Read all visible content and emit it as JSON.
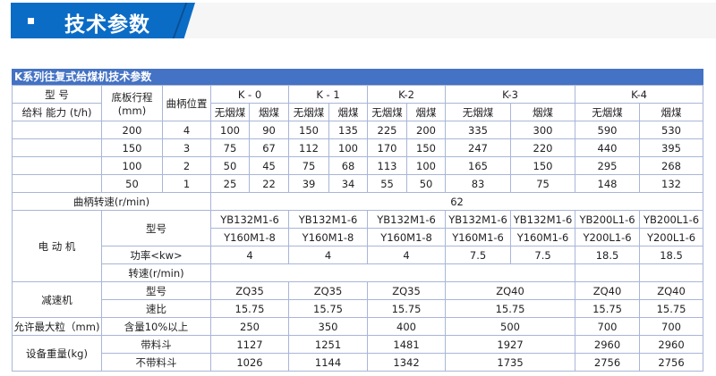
{
  "banner": {
    "title": "技术参数",
    "bullet_icon": "square-bullet-icon"
  },
  "table": {
    "caption": "K系列往复式给煤机技术参数",
    "header": {
      "model_label": "型 号",
      "capacity_label": "给料 能力 (t/h)",
      "stroke_label_1": "底板行程",
      "stroke_label_2": "(mm)",
      "crank_label": "曲柄位置",
      "models": [
        "K - 0",
        "K - 1",
        "K-2",
        "K-3",
        "K-4"
      ],
      "coal_types": [
        "无烟煤",
        "烟煤"
      ]
    },
    "capacity_rows": [
      {
        "stroke": "200",
        "position": "4",
        "values": [
          "100",
          "90",
          "150",
          "135",
          "225",
          "200",
          "335",
          "300",
          "590",
          "530"
        ]
      },
      {
        "stroke": "150",
        "position": "3",
        "values": [
          "75",
          "67",
          "112",
          "100",
          "170",
          "150",
          "247",
          "220",
          "440",
          "395"
        ]
      },
      {
        "stroke": "100",
        "position": "2",
        "values": [
          "50",
          "45",
          "75",
          "68",
          "113",
          "100",
          "165",
          "150",
          "295",
          "268"
        ]
      },
      {
        "stroke": "50",
        "position": "1",
        "values": [
          "25",
          "22",
          "39",
          "34",
          "55",
          "50",
          "83",
          "75",
          "148",
          "132"
        ]
      }
    ],
    "crank_speed": {
      "label": "曲柄转速(r/min)",
      "value": "62"
    },
    "motor": {
      "label": "电 动 机",
      "model_label": "型号",
      "models_1": [
        "YB132M1-6",
        "YB132M1-6",
        "YB132M1-6",
        "YB132M1-6",
        "YB132M1-6",
        "YB200L1-6",
        "YB200L1-6"
      ],
      "models_2": [
        "Y160M1-8",
        "Y160M1-8",
        "Y160M1-8",
        "Y160M1-6",
        "Y160M1-6",
        "Y200L1-6",
        "Y200L1-6"
      ],
      "power_label": "功率<kw>",
      "power": [
        "4",
        "4",
        "4",
        "7.5",
        "7.5",
        "18.5",
        "18.5"
      ],
      "speed_label": "转速(r/min)"
    },
    "reducer": {
      "label": "减速机",
      "model_label": "型号",
      "models": [
        "ZQ35",
        "ZQ35",
        "ZQ35",
        "ZQ40",
        "ZQ40",
        "ZQ40"
      ],
      "ratio_label": "速比",
      "ratios": [
        "15.75",
        "15.75",
        "15.75",
        "15.75",
        "15.75",
        "15.75"
      ]
    },
    "max_particle": {
      "label": "允许最大粒（mm)",
      "sub_label": "含量10%以上",
      "values": [
        "250",
        "350",
        "400",
        "500",
        "700",
        "700"
      ]
    },
    "weight": {
      "label": "设备重量(kg)",
      "with_hopper_label": "带料斗",
      "with_hopper": [
        "1127",
        "1251",
        "1481",
        "1927",
        "2960",
        "2960"
      ],
      "without_hopper_label": "不带料斗",
      "without_hopper": [
        "1026",
        "1144",
        "1342",
        "1735",
        "2756",
        "2756"
      ]
    }
  }
}
